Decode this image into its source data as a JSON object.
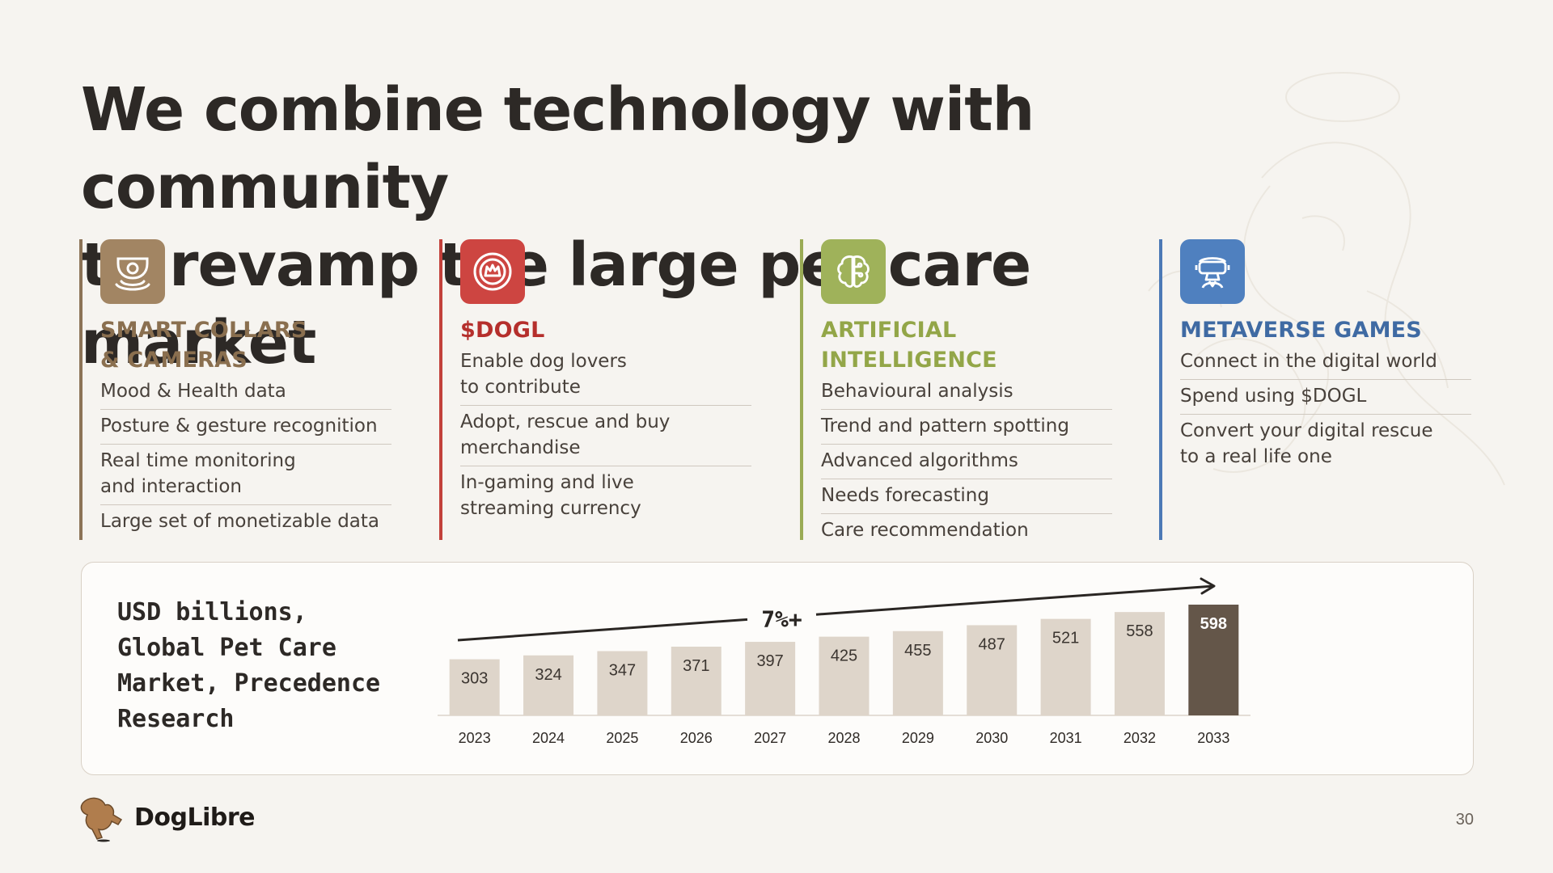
{
  "headline": {
    "line1": "We combine technology with community",
    "line2": "to revamp the large pet care market"
  },
  "columns": [
    {
      "icon": "security-camera-icon",
      "title_lines": [
        "SMART COLLARS",
        "& CAMERAS"
      ],
      "items": [
        [
          "Mood & Health data"
        ],
        [
          "Posture & gesture recognition"
        ],
        [
          "Real time monitoring",
          "and interaction"
        ],
        [
          "Large set of monetizable data"
        ]
      ]
    },
    {
      "icon": "token-crown-icon",
      "title_lines": [
        "$DOGL"
      ],
      "items": [
        [
          "Enable dog lovers",
          "to contribute"
        ],
        [
          "Adopt, rescue and buy",
          "merchandise"
        ],
        [
          "In-gaming and live",
          "streaming currency"
        ]
      ]
    },
    {
      "icon": "brain-network-icon",
      "title_lines": [
        "ARTIFICIAL",
        "INTELLIGENCE"
      ],
      "items": [
        [
          "Behavioural analysis"
        ],
        [
          "Trend and pattern spotting"
        ],
        [
          "Advanced algorithms"
        ],
        [
          "Needs forecasting"
        ],
        [
          "Care recommendation"
        ]
      ]
    },
    {
      "icon": "vr-headset-icon",
      "title_lines": [
        "METAVERSE GAMES"
      ],
      "items": [
        [
          "Connect in the digital world"
        ],
        [
          "Spend using $DOGL"
        ],
        [
          "Convert your digital rescue",
          "to a real life one"
        ]
      ]
    }
  ],
  "chart_data": {
    "type": "bar",
    "title_lines": [
      "USD billions,",
      "Global Pet Care",
      "Market, Precedence",
      "Research"
    ],
    "categories": [
      "2023",
      "2024",
      "2025",
      "2026",
      "2027",
      "2028",
      "2029",
      "2030",
      "2031",
      "2032",
      "2033"
    ],
    "values": [
      303,
      324,
      347,
      371,
      397,
      425,
      455,
      487,
      521,
      558,
      598
    ],
    "highlight_index": 10,
    "trend_label": "7%+",
    "xlabel": "",
    "ylabel": "",
    "grid": false,
    "colors": {
      "bar": "#ded5ca",
      "highlight": "#645649",
      "trend": "#2a2623"
    }
  },
  "footer": {
    "brand": "DogLibre",
    "page_number": "30"
  }
}
